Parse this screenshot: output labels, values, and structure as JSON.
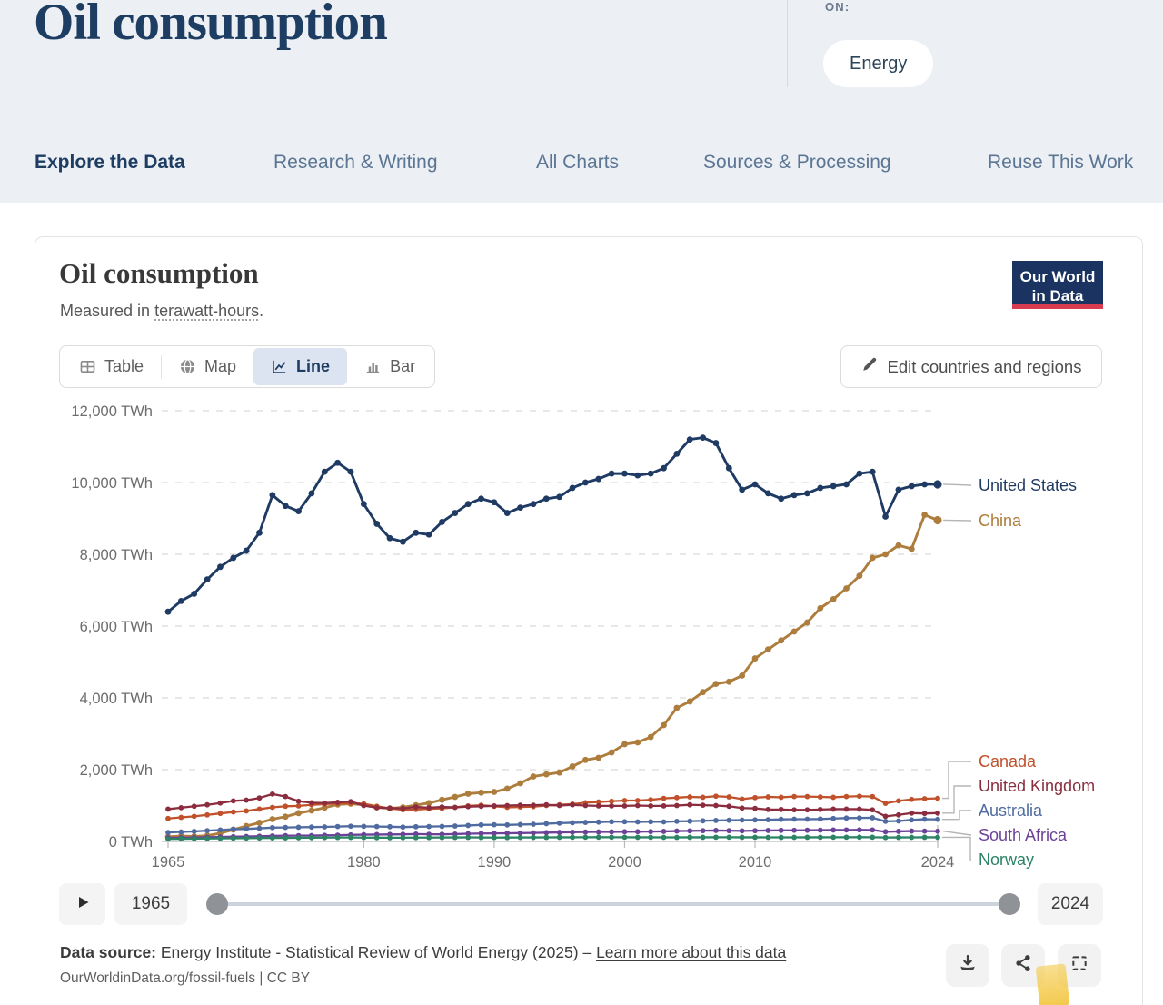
{
  "header": {
    "title": "Oil consumption",
    "topics_label": "ON:",
    "topic_pill": "Energy"
  },
  "nav": {
    "items": [
      {
        "label": "Explore the Data",
        "active": true
      },
      {
        "label": "Research & Writing",
        "active": false
      },
      {
        "label": "All Charts",
        "active": false
      },
      {
        "label": "Sources & Processing",
        "active": false
      },
      {
        "label": "Reuse This Work",
        "active": false
      }
    ]
  },
  "chart_header": {
    "title": "Oil consumption",
    "subtitle_prefix": "Measured in ",
    "subtitle_term": "terawatt-hours",
    "subtitle_suffix": ".",
    "logo_line1": "Our World",
    "logo_line2": "in Data"
  },
  "view_tabs": {
    "items": [
      {
        "label": "Table",
        "icon": "table-icon",
        "active": false
      },
      {
        "label": "Map",
        "icon": "globe-icon",
        "active": false
      },
      {
        "label": "Line",
        "icon": "line-chart-icon",
        "active": true
      },
      {
        "label": "Bar",
        "icon": "bar-chart-icon",
        "active": false
      }
    ],
    "edit_button": "Edit countries and regions"
  },
  "chart_data": {
    "type": "line",
    "title": "Oil consumption",
    "subtitle": "Measured in terawatt-hours.",
    "unit": "TWh",
    "ylim": [
      0,
      12000
    ],
    "grid": "horizontal-dashed",
    "legend_position": "right-of-line-ends",
    "y_ticks": [
      {
        "value": 0,
        "label": "0 TWh"
      },
      {
        "value": 2000,
        "label": "2,000 TWh"
      },
      {
        "value": 4000,
        "label": "4,000 TWh"
      },
      {
        "value": 6000,
        "label": "6,000 TWh"
      },
      {
        "value": 8000,
        "label": "8,000 TWh"
      },
      {
        "value": 10000,
        "label": "10,000 TWh"
      },
      {
        "value": 12000,
        "label": "12,000 TWh"
      }
    ],
    "x_ticks": [
      1965,
      1980,
      1990,
      2000,
      2010,
      2024
    ],
    "years": [
      1965,
      1966,
      1967,
      1968,
      1969,
      1970,
      1971,
      1972,
      1973,
      1974,
      1975,
      1976,
      1977,
      1978,
      1979,
      1980,
      1981,
      1982,
      1983,
      1984,
      1985,
      1986,
      1987,
      1988,
      1989,
      1990,
      1991,
      1992,
      1993,
      1994,
      1995,
      1996,
      1997,
      1998,
      1999,
      2000,
      2001,
      2002,
      2003,
      2004,
      2005,
      2006,
      2007,
      2008,
      2009,
      2010,
      2011,
      2012,
      2013,
      2014,
      2015,
      2016,
      2017,
      2018,
      2019,
      2020,
      2021,
      2022,
      2023,
      2024
    ],
    "series": [
      {
        "name": "United States",
        "color": "#1f3a63",
        "values": [
          6400,
          6700,
          6900,
          7300,
          7650,
          7900,
          8100,
          8600,
          9650,
          9350,
          9200,
          9700,
          10300,
          10550,
          10300,
          9400,
          8850,
          8450,
          8350,
          8600,
          8550,
          8900,
          9150,
          9400,
          9550,
          9450,
          9150,
          9300,
          9400,
          9550,
          9600,
          9850,
          10000,
          10100,
          10250,
          10250,
          10200,
          10250,
          10400,
          10800,
          11200,
          11250,
          11100,
          10400,
          9800,
          9950,
          9700,
          9550,
          9650,
          9700,
          9850,
          9900,
          9950,
          10250,
          10300,
          9050,
          9800,
          9900,
          9950,
          9950
        ]
      },
      {
        "name": "China",
        "color": "#ad7d3d",
        "values": [
          130,
          150,
          140,
          160,
          230,
          330,
          430,
          520,
          620,
          690,
          790,
          860,
          940,
          1030,
          1050,
          1020,
          950,
          920,
          950,
          1010,
          1070,
          1160,
          1240,
          1330,
          1360,
          1380,
          1470,
          1620,
          1810,
          1870,
          1920,
          2090,
          2270,
          2330,
          2480,
          2710,
          2760,
          2910,
          3240,
          3720,
          3900,
          4160,
          4390,
          4450,
          4620,
          5100,
          5350,
          5600,
          5850,
          6100,
          6500,
          6750,
          7050,
          7400,
          7900,
          8000,
          8250,
          8150,
          9100,
          8950
        ]
      },
      {
        "name": "Canada",
        "color": "#c0512b",
        "values": [
          640,
          670,
          700,
          740,
          780,
          820,
          850,
          900,
          950,
          980,
          990,
          1020,
          1040,
          1060,
          1070,
          1050,
          980,
          920,
          880,
          890,
          910,
          920,
          950,
          990,
          1010,
          980,
          950,
          960,
          970,
          1000,
          1020,
          1040,
          1080,
          1100,
          1120,
          1140,
          1140,
          1160,
          1200,
          1220,
          1240,
          1230,
          1260,
          1240,
          1180,
          1220,
          1240,
          1230,
          1250,
          1250,
          1240,
          1230,
          1250,
          1260,
          1250,
          1060,
          1130,
          1170,
          1190,
          1200
        ]
      },
      {
        "name": "United Kingdom",
        "color": "#8b2d3e",
        "values": [
          900,
          940,
          980,
          1020,
          1070,
          1130,
          1150,
          1210,
          1320,
          1250,
          1120,
          1080,
          1070,
          1090,
          1110,
          1000,
          940,
          930,
          920,
          960,
          940,
          960,
          950,
          970,
          980,
          990,
          1000,
          1010,
          1010,
          1020,
          1000,
          1020,
          1000,
          990,
          990,
          990,
          1000,
          990,
          990,
          1000,
          1020,
          1010,
          1000,
          980,
          930,
          920,
          890,
          890,
          880,
          880,
          890,
          900,
          900,
          900,
          880,
          700,
          740,
          790,
          780,
          790
        ]
      },
      {
        "name": "Australia",
        "color": "#4f6ba0",
        "values": [
          250,
          265,
          280,
          300,
          320,
          340,
          350,
          365,
          385,
          390,
          395,
          400,
          405,
          415,
          425,
          420,
          415,
          410,
          400,
          410,
          415,
          420,
          430,
          445,
          460,
          465,
          460,
          470,
          480,
          495,
          510,
          520,
          530,
          540,
          550,
          550,
          545,
          550,
          545,
          560,
          565,
          575,
          585,
          590,
          595,
          600,
          605,
          615,
          620,
          620,
          625,
          640,
          650,
          655,
          660,
          560,
          570,
          600,
          620,
          615
        ]
      },
      {
        "name": "South Africa",
        "color": "#6b4298",
        "values": [
          100,
          105,
          110,
          118,
          125,
          132,
          138,
          145,
          155,
          160,
          162,
          165,
          170,
          175,
          182,
          188,
          192,
          195,
          198,
          205,
          200,
          198,
          205,
          215,
          222,
          225,
          228,
          232,
          238,
          245,
          252,
          258,
          262,
          265,
          268,
          270,
          272,
          275,
          280,
          290,
          295,
          300,
          305,
          300,
          295,
          300,
          305,
          308,
          310,
          312,
          315,
          318,
          320,
          322,
          320,
          270,
          280,
          290,
          288,
          285
        ]
      },
      {
        "name": "Norway",
        "color": "#2c8465",
        "values": [
          70,
          74,
          78,
          82,
          86,
          90,
          92,
          96,
          100,
          98,
          102,
          106,
          108,
          110,
          112,
          108,
          106,
          104,
          105,
          107,
          108,
          110,
          112,
          113,
          110,
          108,
          109,
          111,
          112,
          113,
          115,
          116,
          118,
          119,
          118,
          117,
          116,
          115,
          114,
          113,
          115,
          116,
          118,
          117,
          116,
          115,
          114,
          113,
          114,
          115,
          116,
          117,
          118,
          119,
          118,
          110,
          112,
          114,
          115,
          116
        ]
      }
    ]
  },
  "timeline": {
    "start_year": "1965",
    "end_year": "2024"
  },
  "footer": {
    "datasource_label": "Data source:",
    "datasource_text": " Energy Institute - Statistical Review of World Energy (2025) – ",
    "link_text": "Learn more about this data",
    "citation": "OurWorldinData.org/fossil-fuels | CC BY"
  },
  "colors": {
    "band_background": "#eceff3",
    "accent_navy": "#1d3d63",
    "logo_red": "#d83c4e",
    "selected_tab_bg": "#dbe4f0",
    "highlight_yellow": "#f2c53d"
  }
}
